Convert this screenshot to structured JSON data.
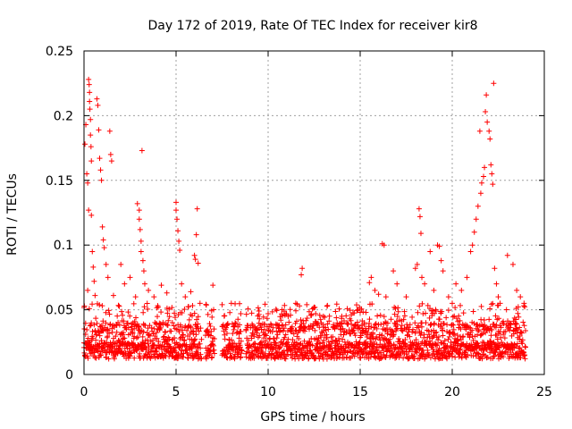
{
  "chart_data": {
    "type": "scatter",
    "title": "Day 172 of 2019, Rate Of TEC Index for receiver kir8",
    "xlabel": "GPS time / hours",
    "ylabel": "ROTI / TECUs",
    "xlim": [
      0,
      25
    ],
    "ylim": [
      0,
      0.25
    ],
    "grid": true,
    "marker": "+",
    "color": "#ff0000",
    "x_ticks": [
      0,
      5,
      10,
      15,
      20,
      25
    ],
    "y_ticks": [
      0,
      0.05,
      0.1,
      0.15,
      0.2,
      0.25
    ],
    "x_tick_labels": [
      "0",
      "5",
      "10",
      "15",
      "20",
      "25"
    ],
    "y_tick_labels": [
      "0",
      "0.05",
      "0.1",
      "0.15",
      "0.2",
      "0.25"
    ],
    "series": [
      {
        "name": "ROTI",
        "points": [
          [
            0.05,
            0.178
          ],
          [
            0.1,
            0.193
          ],
          [
            0.15,
            0.155
          ],
          [
            0.2,
            0.148
          ],
          [
            0.25,
            0.127
          ],
          [
            0.25,
            0.228
          ],
          [
            0.28,
            0.224
          ],
          [
            0.3,
            0.218
          ],
          [
            0.3,
            0.211
          ],
          [
            0.32,
            0.205
          ],
          [
            0.35,
            0.197
          ],
          [
            0.35,
            0.185
          ],
          [
            0.38,
            0.176
          ],
          [
            0.4,
            0.165
          ],
          [
            0.4,
            0.123
          ],
          [
            0.45,
            0.095
          ],
          [
            0.5,
            0.083
          ],
          [
            0.55,
            0.072
          ],
          [
            0.2,
            0.065
          ],
          [
            0.6,
            0.061
          ],
          [
            0.7,
            0.213
          ],
          [
            0.75,
            0.208
          ],
          [
            0.8,
            0.189
          ],
          [
            0.85,
            0.167
          ],
          [
            0.9,
            0.158
          ],
          [
            0.95,
            0.15
          ],
          [
            1.0,
            0.114
          ],
          [
            1.05,
            0.104
          ],
          [
            1.1,
            0.098
          ],
          [
            1.2,
            0.085
          ],
          [
            1.3,
            0.075
          ],
          [
            1.4,
            0.188
          ],
          [
            1.45,
            0.17
          ],
          [
            1.5,
            0.165
          ],
          [
            1.6,
            0.061
          ],
          [
            2.0,
            0.085
          ],
          [
            2.2,
            0.07
          ],
          [
            2.5,
            0.075
          ],
          [
            2.8,
            0.06
          ],
          [
            2.9,
            0.132
          ],
          [
            3.0,
            0.127
          ],
          [
            3.0,
            0.12
          ],
          [
            3.05,
            0.112
          ],
          [
            3.1,
            0.103
          ],
          [
            3.1,
            0.095
          ],
          [
            3.15,
            0.173
          ],
          [
            3.2,
            0.088
          ],
          [
            3.25,
            0.08
          ],
          [
            3.3,
            0.07
          ],
          [
            3.5,
            0.065
          ],
          [
            3.8,
            0.06
          ],
          [
            4.2,
            0.069
          ],
          [
            4.5,
            0.063
          ],
          [
            5.0,
            0.133
          ],
          [
            5.0,
            0.127
          ],
          [
            5.05,
            0.12
          ],
          [
            5.1,
            0.111
          ],
          [
            5.15,
            0.103
          ],
          [
            5.2,
            0.096
          ],
          [
            5.3,
            0.07
          ],
          [
            5.5,
            0.06
          ],
          [
            5.8,
            0.064
          ],
          [
            6.0,
            0.092
          ],
          [
            6.05,
            0.089
          ],
          [
            6.1,
            0.108
          ],
          [
            6.15,
            0.128
          ],
          [
            6.2,
            0.086
          ],
          [
            6.3,
            0.055
          ],
          [
            7.0,
            0.069
          ],
          [
            8.0,
            0.055
          ],
          [
            9.5,
            0.049
          ],
          [
            10.0,
            0.047
          ],
          [
            11.0,
            0.047
          ],
          [
            11.5,
            0.055
          ],
          [
            11.8,
            0.077
          ],
          [
            11.85,
            0.082
          ],
          [
            12.5,
            0.052
          ],
          [
            13.0,
            0.045
          ],
          [
            14.0,
            0.045
          ],
          [
            15.0,
            0.048
          ],
          [
            15.5,
            0.071
          ],
          [
            15.6,
            0.075
          ],
          [
            15.8,
            0.065
          ],
          [
            16.0,
            0.062
          ],
          [
            16.2,
            0.101
          ],
          [
            16.3,
            0.1
          ],
          [
            16.4,
            0.06
          ],
          [
            16.8,
            0.08
          ],
          [
            17.0,
            0.07
          ],
          [
            17.5,
            0.06
          ],
          [
            18.0,
            0.082
          ],
          [
            18.1,
            0.085
          ],
          [
            18.2,
            0.128
          ],
          [
            18.25,
            0.122
          ],
          [
            18.3,
            0.109
          ],
          [
            18.35,
            0.075
          ],
          [
            18.5,
            0.07
          ],
          [
            18.8,
            0.095
          ],
          [
            19.0,
            0.065
          ],
          [
            19.2,
            0.1
          ],
          [
            19.3,
            0.099
          ],
          [
            19.4,
            0.088
          ],
          [
            19.5,
            0.08
          ],
          [
            19.8,
            0.06
          ],
          [
            20.0,
            0.055
          ],
          [
            20.2,
            0.07
          ],
          [
            20.5,
            0.065
          ],
          [
            20.8,
            0.075
          ],
          [
            21.0,
            0.095
          ],
          [
            21.1,
            0.1
          ],
          [
            21.2,
            0.11
          ],
          [
            21.3,
            0.12
          ],
          [
            21.4,
            0.13
          ],
          [
            21.5,
            0.188
          ],
          [
            21.55,
            0.14
          ],
          [
            21.6,
            0.148
          ],
          [
            21.7,
            0.153
          ],
          [
            21.75,
            0.16
          ],
          [
            21.8,
            0.203
          ],
          [
            21.85,
            0.216
          ],
          [
            21.9,
            0.195
          ],
          [
            22.0,
            0.188
          ],
          [
            22.05,
            0.182
          ],
          [
            22.1,
            0.162
          ],
          [
            22.15,
            0.155
          ],
          [
            22.2,
            0.147
          ],
          [
            22.25,
            0.225
          ],
          [
            22.3,
            0.082
          ],
          [
            22.4,
            0.07
          ],
          [
            22.5,
            0.06
          ],
          [
            22.6,
            0.055
          ],
          [
            23.0,
            0.092
          ],
          [
            23.3,
            0.085
          ],
          [
            23.5,
            0.065
          ],
          [
            23.7,
            0.06
          ],
          [
            23.9,
            0.055
          ]
        ]
      }
    ]
  }
}
